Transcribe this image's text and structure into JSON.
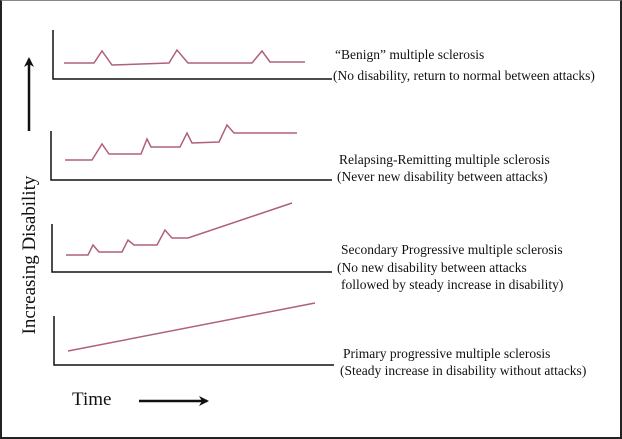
{
  "axis_labels": {
    "y": "Increasing Disability",
    "x": "Time"
  },
  "colors": {
    "line": "#b0607a",
    "axis": "#111111"
  },
  "panels": [
    {
      "title": "“Benign” multiple sclerosis",
      "subtitle": "(No disability, return to normal between attacks)"
    },
    {
      "title": "Relapsing-Remitting multiple sclerosis",
      "subtitle": "(Never new disability between attacks)"
    },
    {
      "title": "Secondary Progressive multiple sclerosis",
      "subtitle": "(No new disability between attacks",
      "subtitle2": "followed by steady increase in disability)"
    },
    {
      "title": "Primary progressive multiple sclerosis",
      "subtitle": "(Steady increase in disability without attacks)"
    }
  ]
}
